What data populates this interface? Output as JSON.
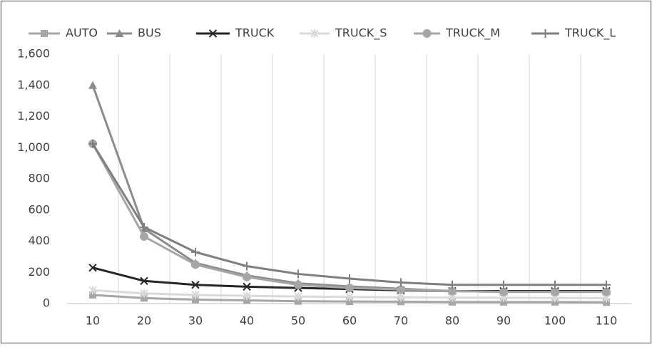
{
  "chart_data": {
    "type": "line",
    "categories": [
      10,
      20,
      30,
      40,
      50,
      60,
      70,
      80,
      90,
      100,
      110
    ],
    "series": [
      {
        "name": "AUTO",
        "color": "#a6a6a6",
        "marker": "square",
        "values": [
          55,
          35,
          25,
          20,
          15,
          13,
          12,
          10,
          10,
          10,
          8
        ]
      },
      {
        "name": "BUS",
        "color": "#8c8c8c",
        "marker": "triangle",
        "values": [
          1400,
          480,
          260,
          180,
          130,
          110,
          95,
          80,
          75,
          75,
          75
        ]
      },
      {
        "name": "TRUCK",
        "color": "#262626",
        "marker": "x",
        "values": [
          230,
          145,
          120,
          108,
          100,
          93,
          85,
          80,
          80,
          80,
          80
        ]
      },
      {
        "name": "TRUCK_S",
        "color": "#d9d9d9",
        "marker": "star",
        "values": [
          85,
          65,
          55,
          50,
          45,
          42,
          40,
          38,
          37,
          36,
          35
        ]
      },
      {
        "name": "TRUCK_M",
        "color": "#a6a6a6",
        "marker": "circle",
        "values": [
          1025,
          430,
          250,
          170,
          120,
          100,
          90,
          80,
          75,
          75,
          75
        ]
      },
      {
        "name": "TRUCK_L",
        "color": "#7f7f7f",
        "marker": "plus",
        "values": [
          1025,
          490,
          330,
          240,
          190,
          160,
          135,
          120,
          120,
          120,
          120
        ]
      }
    ],
    "ylim": [
      0,
      1600
    ],
    "yticks": [
      0,
      200,
      400,
      600,
      800,
      {
        "value": 1000,
        "label": "1,000"
      },
      {
        "value": 1200,
        "label": "1,200"
      },
      {
        "value": 1400,
        "label": "1,400"
      },
      {
        "value": 1600,
        "label": "1,600"
      }
    ],
    "grid": "vertical",
    "legend": "top"
  }
}
